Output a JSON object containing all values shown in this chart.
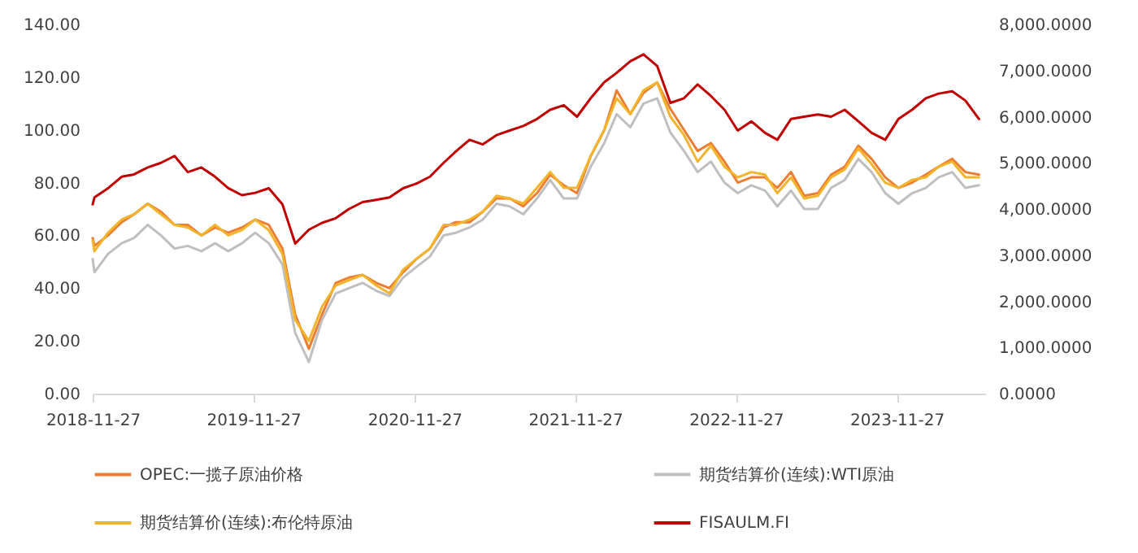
{
  "chart_data": {
    "type": "line",
    "x": [
      "2018-11-27",
      "2018-12",
      "2019-01",
      "2019-02",
      "2019-03",
      "2019-04",
      "2019-05",
      "2019-06",
      "2019-07",
      "2019-08",
      "2019-09",
      "2019-10",
      "2019-11",
      "2019-12",
      "2020-01",
      "2020-02",
      "2020-03",
      "2020-04",
      "2020-05",
      "2020-06",
      "2020-07",
      "2020-08",
      "2020-09",
      "2020-10",
      "2020-11",
      "2020-12",
      "2021-01",
      "2021-02",
      "2021-03",
      "2021-04",
      "2021-05",
      "2021-06",
      "2021-07",
      "2021-08",
      "2021-09",
      "2021-10",
      "2021-11",
      "2021-12",
      "2022-01",
      "2022-02",
      "2022-03",
      "2022-04",
      "2022-05",
      "2022-06",
      "2022-07",
      "2022-08",
      "2022-09",
      "2022-10",
      "2022-11",
      "2022-12",
      "2023-01",
      "2023-02",
      "2023-03",
      "2023-04",
      "2023-05",
      "2023-06",
      "2023-07",
      "2023-08",
      "2023-09",
      "2023-10",
      "2023-11",
      "2023-12",
      "2024-01",
      "2024-02",
      "2024-03",
      "2024-04",
      "2024-05",
      "2024-06"
    ],
    "series": [
      {
        "name": "OPEC:一揽子原油价格",
        "color": "#ed7d31",
        "values": [
          59,
          56,
          60,
          65,
          68,
          72,
          69,
          64,
          64,
          60,
          63,
          61,
          63,
          66,
          64,
          55,
          30,
          17,
          30,
          42,
          44,
          45,
          42,
          40,
          46,
          51,
          55,
          63,
          65,
          65,
          69,
          74,
          74,
          71,
          76,
          83,
          79,
          76,
          90,
          100,
          115,
          106,
          114,
          118,
          108,
          100,
          92,
          95,
          88,
          80,
          82,
          82,
          78,
          84,
          75,
          76,
          83,
          86,
          94,
          89,
          82,
          78,
          80,
          83,
          86,
          89,
          84,
          83
        ]
      },
      {
        "name": "期货结算价(连续):WTI原油",
        "color": "#bfbfbf",
        "values": [
          51,
          46,
          53,
          57,
          59,
          64,
          60,
          55,
          56,
          54,
          57,
          54,
          57,
          61,
          57,
          49,
          23,
          12,
          28,
          38,
          40,
          42,
          39,
          37,
          44,
          48,
          52,
          60,
          61,
          63,
          66,
          72,
          71,
          68,
          74,
          81,
          74,
          74,
          86,
          95,
          106,
          101,
          110,
          112,
          99,
          92,
          84,
          88,
          80,
          76,
          79,
          77,
          71,
          77,
          70,
          70,
          78,
          81,
          89,
          84,
          76,
          72,
          76,
          78,
          82,
          84,
          78,
          79
        ]
      },
      {
        "name": "期货结算价(连续):布伦特原油",
        "color": "#f2b42c",
        "values": [
          58,
          54,
          61,
          66,
          68,
          72,
          68,
          64,
          63,
          60,
          64,
          60,
          62,
          66,
          62,
          53,
          28,
          20,
          33,
          41,
          43,
          45,
          41,
          38,
          47,
          51,
          55,
          64,
          64,
          66,
          69,
          75,
          74,
          72,
          78,
          84,
          78,
          78,
          90,
          100,
          112,
          106,
          115,
          118,
          105,
          98,
          88,
          94,
          86,
          82,
          84,
          83,
          76,
          82,
          74,
          75,
          82,
          85,
          93,
          87,
          80,
          78,
          81,
          82,
          86,
          88,
          82,
          82
        ]
      },
      {
        "name": "FISAULM.FI",
        "color": "#c00000",
        "axis": "y2",
        "values": [
          4100,
          4250,
          4450,
          4700,
          4750,
          4900,
          5000,
          5150,
          4800,
          4900,
          4700,
          4450,
          4300,
          4350,
          4450,
          4100,
          3250,
          3550,
          3700,
          3800,
          4000,
          4150,
          4200,
          4250,
          4450,
          4550,
          4700,
          5000,
          5250,
          5500,
          5400,
          5600,
          5700,
          5800,
          5950,
          6150,
          6250,
          6000,
          6400,
          6750,
          6950,
          7200,
          7350,
          7100,
          6300,
          6400,
          6700,
          6450,
          6150,
          5700,
          5900,
          5650,
          5500,
          5950,
          6000,
          6050,
          6000,
          6150,
          5900,
          5650,
          5500,
          5950,
          6150,
          6400,
          6500,
          6550,
          6350,
          5950
        ]
      }
    ],
    "xlim": [
      "2018-11-27",
      "2024-06-15"
    ],
    "xticks": [
      "2018-11-27",
      "2019-11-27",
      "2020-11-27",
      "2021-11-27",
      "2022-11-27",
      "2023-11-27"
    ],
    "ylim": [
      0,
      140
    ],
    "yticks": [
      {
        "value": 0,
        "label": "0.00"
      },
      {
        "value": 20,
        "label": "20.00"
      },
      {
        "value": 40,
        "label": "40.00"
      },
      {
        "value": 60,
        "label": "60.00"
      },
      {
        "value": 80,
        "label": "80.00"
      },
      {
        "value": 100,
        "label": "100.00"
      },
      {
        "value": 120,
        "label": "120.00"
      },
      {
        "value": 140,
        "label": "140.00"
      }
    ],
    "y2lim": [
      0,
      8000
    ],
    "y2ticks": [
      {
        "value": 0,
        "label": "0.0000"
      },
      {
        "value": 1000,
        "label": "1,000.0000"
      },
      {
        "value": 2000,
        "label": "2,000.0000"
      },
      {
        "value": 3000,
        "label": "3,000.0000"
      },
      {
        "value": 4000,
        "label": "4,000.0000"
      },
      {
        "value": 5000,
        "label": "5,000.0000"
      },
      {
        "value": 6000,
        "label": "6,000.0000"
      },
      {
        "value": 7000,
        "label": "7,000.0000"
      },
      {
        "value": 8000,
        "label": "8,000.0000"
      }
    ],
    "grid": false,
    "legend": "bottom",
    "line_style": "solid"
  }
}
